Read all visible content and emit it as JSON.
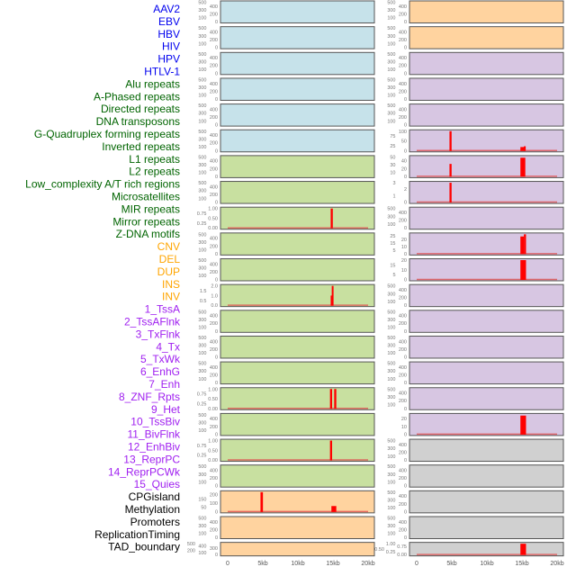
{
  "chart_data": {
    "type": "bar",
    "title": "",
    "x_ticks": [
      "0",
      "5kb",
      "10kb",
      "15kb",
      "20kb"
    ],
    "xlim_kb": [
      0,
      20
    ],
    "label_colors": {
      "virus": "#0000ee",
      "repeat": "#006400",
      "sv": "#ffa500",
      "chromhmm": "#a020f0",
      "other": "#000000"
    },
    "labels": [
      {
        "text": "AAV2",
        "group": "virus"
      },
      {
        "text": "EBV",
        "group": "virus"
      },
      {
        "text": "HBV",
        "group": "virus"
      },
      {
        "text": "HIV",
        "group": "virus"
      },
      {
        "text": "HPV",
        "group": "virus"
      },
      {
        "text": "HTLV-1",
        "group": "virus"
      },
      {
        "text": "Alu repeats",
        "group": "repeat"
      },
      {
        "text": "A-Phased repeats",
        "group": "repeat"
      },
      {
        "text": "Directed repeats",
        "group": "repeat"
      },
      {
        "text": "DNA transposons",
        "group": "repeat"
      },
      {
        "text": "G-Quadruplex forming repeats",
        "group": "repeat"
      },
      {
        "text": "Inverted repeats",
        "group": "repeat"
      },
      {
        "text": "L1 repeats",
        "group": "repeat"
      },
      {
        "text": "L2 repeats",
        "group": "repeat"
      },
      {
        "text": "Low_complexity A/T rich regions",
        "group": "repeat"
      },
      {
        "text": "Microsatellites",
        "group": "repeat"
      },
      {
        "text": "MIR repeats",
        "group": "repeat"
      },
      {
        "text": "Mirror repeats",
        "group": "repeat"
      },
      {
        "text": "Z-DNA motifs",
        "group": "repeat"
      },
      {
        "text": "CNV",
        "group": "sv"
      },
      {
        "text": "DEL",
        "group": "sv"
      },
      {
        "text": "DUP",
        "group": "sv"
      },
      {
        "text": "INS",
        "group": "sv"
      },
      {
        "text": "INV",
        "group": "sv"
      },
      {
        "text": "1_TssA",
        "group": "chromhmm"
      },
      {
        "text": "2_TssAFlnk",
        "group": "chromhmm"
      },
      {
        "text": "3_TxFlnk",
        "group": "chromhmm"
      },
      {
        "text": "4_Tx",
        "group": "chromhmm"
      },
      {
        "text": "5_TxWk",
        "group": "chromhmm"
      },
      {
        "text": "6_EnhG",
        "group": "chromhmm"
      },
      {
        "text": "7_Enh",
        "group": "chromhmm"
      },
      {
        "text": "8_ZNF_Rpts",
        "group": "chromhmm"
      },
      {
        "text": "9_Het",
        "group": "chromhmm"
      },
      {
        "text": "10_TssBiv",
        "group": "chromhmm"
      },
      {
        "text": "11_BivFlnk",
        "group": "chromhmm"
      },
      {
        "text": "12_EnhBiv",
        "group": "chromhmm"
      },
      {
        "text": "13_ReprPC",
        "group": "chromhmm"
      },
      {
        "text": "14_ReprPCWk",
        "group": "chromhmm"
      },
      {
        "text": "15_Quies",
        "group": "chromhmm"
      },
      {
        "text": "CPGisland",
        "group": "other"
      },
      {
        "text": "Methylation",
        "group": "other"
      },
      {
        "text": "Promoters",
        "group": "other"
      },
      {
        "text": "ReplicationTiming",
        "group": "other"
      },
      {
        "text": "TAD_boundary",
        "group": "other"
      }
    ],
    "panel_colors": {
      "blue": "#c6e2ea",
      "green": "#c8e0a0",
      "orange": "#ffd39f",
      "purple": "#d7c6e2",
      "gray": "#d0d0d0"
    },
    "bar_color": "#ff0000",
    "default_yticks": [
      "0",
      "100",
      "200",
      "300",
      "400",
      "500"
    ],
    "columns": [
      {
        "name": "left",
        "panels": [
          {
            "color": "blue"
          },
          {
            "color": "blue"
          },
          {
            "color": "blue"
          },
          {
            "color": "blue"
          },
          {
            "color": "blue"
          },
          {
            "color": "blue"
          },
          {
            "color": "green"
          },
          {
            "color": "green"
          },
          {
            "color": "green",
            "yticks": [
              "0.00",
              "0.25",
              "0.50",
              "0.75",
              "1.00"
            ],
            "ymax": 1,
            "baseline": true,
            "bars": [
              {
                "x": 14.8,
                "w": 0.3,
                "y": 1
              }
            ]
          },
          {
            "color": "green"
          },
          {
            "color": "green"
          },
          {
            "color": "green",
            "yticks": [
              "0.0",
              "0.5",
              "1.0",
              "1.5",
              "2.0"
            ],
            "ymax": 2,
            "baseline": true,
            "bars": [
              {
                "x": 14.8,
                "w": 0.15,
                "y": 1
              },
              {
                "x": 14.95,
                "w": 0.2,
                "y": 2
              }
            ]
          },
          {
            "color": "green"
          },
          {
            "color": "green"
          },
          {
            "color": "green"
          },
          {
            "color": "green",
            "yticks": [
              "0.00",
              "0.25",
              "0.50",
              "0.75",
              "1.00"
            ],
            "ymax": 1,
            "baseline": true,
            "bars": [
              {
                "x": 14.7,
                "w": 0.3,
                "y": 1
              },
              {
                "x": 15.3,
                "w": 0.3,
                "y": 1
              }
            ]
          },
          {
            "color": "green"
          },
          {
            "color": "green",
            "yticks": [
              "0.00",
              "0.25",
              "0.50",
              "0.75",
              "1.00"
            ],
            "ymax": 1,
            "baseline": true,
            "bars": [
              {
                "x": 14.7,
                "w": 0.3,
                "y": 1
              }
            ]
          },
          {
            "color": "green"
          },
          {
            "color": "orange",
            "yticks": [
              "0",
              "50",
              "100",
              "150",
              "200"
            ],
            "ymax": 230,
            "baseline": true,
            "bars": [
              {
                "x": 4.8,
                "w": 0.35,
                "y": 230
              },
              {
                "x": 14.9,
                "w": 0.7,
                "y": 65
              }
            ]
          },
          {
            "color": "orange"
          },
          {
            "color": "orange"
          }
        ]
      },
      {
        "name": "right",
        "panels": [
          {
            "color": "orange"
          },
          {
            "color": "orange"
          },
          {
            "color": "purple"
          },
          {
            "color": "purple"
          },
          {
            "color": "purple"
          },
          {
            "color": "purple",
            "yticks": [
              "0",
              "25",
              "50",
              "75",
              "100"
            ],
            "ymax": 100,
            "baseline": true,
            "bars": [
              {
                "x": 4.8,
                "w": 0.3,
                "y": 100
              },
              {
                "x": 14.9,
                "w": 0.6,
                "y": 18
              },
              {
                "x": 15.4,
                "w": 0.2,
                "y": 22
              }
            ]
          },
          {
            "color": "purple",
            "yticks": [
              "0",
              "10",
              "20",
              "30",
              "40",
              "50"
            ],
            "ymax": 50,
            "baseline": true,
            "bars": [
              {
                "x": 4.8,
                "w": 0.3,
                "y": 32
              },
              {
                "x": 14.9,
                "w": 0.7,
                "y": 48
              }
            ]
          },
          {
            "color": "purple",
            "yticks": [
              "0",
              "1",
              "2",
              "3"
            ],
            "ymax": 3,
            "baseline": true,
            "bars": [
              {
                "x": 4.8,
                "w": 0.3,
                "y": 3
              }
            ]
          },
          {
            "color": "purple"
          },
          {
            "color": "purple",
            "yticks": [
              "0",
              "5",
              "10",
              "15",
              "20",
              "25"
            ],
            "ymax": 27,
            "baseline": true,
            "bars": [
              {
                "x": 14.9,
                "w": 0.5,
                "y": 24
              },
              {
                "x": 15.4,
                "w": 0.3,
                "y": 27
              }
            ]
          },
          {
            "color": "purple",
            "yticks": [
              "0",
              "5",
              "10",
              "15",
              "20"
            ],
            "ymax": 20,
            "baseline": true,
            "bars": [
              {
                "x": 14.9,
                "w": 0.8,
                "y": 22
              }
            ]
          },
          {
            "color": "purple"
          },
          {
            "color": "purple"
          },
          {
            "color": "purple"
          },
          {
            "color": "purple"
          },
          {
            "color": "purple"
          },
          {
            "color": "purple",
            "yticks": [
              "0",
              "10",
              "20"
            ],
            "ymax": 25,
            "baseline": true,
            "bars": [
              {
                "x": 14.9,
                "w": 0.8,
                "y": 24
              }
            ]
          },
          {
            "color": "gray"
          },
          {
            "color": "gray"
          },
          {
            "color": "gray"
          },
          {
            "color": "gray"
          },
          {
            "color": "gray",
            "yticks": [
              "0.00",
              "0.25",
              "0.50",
              "0.75",
              "1.00"
            ],
            "ymax": 1,
            "baseline": true,
            "bars": [
              {
                "x": 14.9,
                "w": 0.8,
                "y": 1
              }
            ]
          }
        ]
      }
    ]
  }
}
